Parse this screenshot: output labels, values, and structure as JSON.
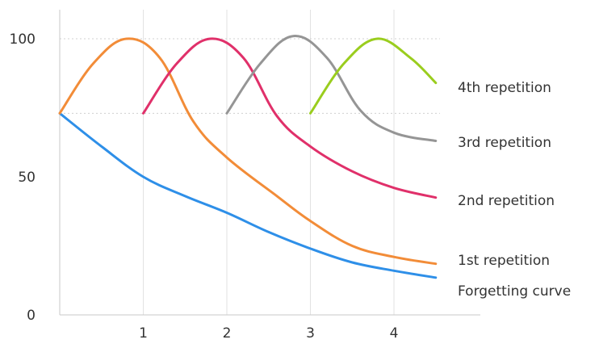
{
  "chart_data": {
    "type": "line",
    "title": "",
    "xlabel": "",
    "ylabel": "",
    "xlim": [
      0,
      4.5
    ],
    "ylim": [
      0,
      100
    ],
    "x_ticks": [
      "1",
      "2",
      "3",
      "4"
    ],
    "y_ticks": [
      "0",
      "50",
      "100"
    ],
    "grid": {
      "vertical": true,
      "horizontal": "dashed"
    },
    "legend": "labels at right end of each line",
    "series": [
      {
        "name": "Forgetting curve",
        "color": "#2E8FE8",
        "points": [
          [
            0,
            73
          ],
          [
            0.5,
            61
          ],
          [
            1,
            50
          ],
          [
            1.5,
            43
          ],
          [
            2,
            37
          ],
          [
            2.5,
            30
          ],
          [
            3,
            24
          ],
          [
            3.5,
            19
          ],
          [
            4,
            16
          ],
          [
            4.5,
            13.5
          ]
        ]
      },
      {
        "name": "1st repetition",
        "color": "#F28C38",
        "points": [
          [
            0,
            73
          ],
          [
            0.4,
            91
          ],
          [
            0.8,
            100
          ],
          [
            1.2,
            93
          ],
          [
            1.6,
            70
          ],
          [
            2,
            57
          ],
          [
            2.6,
            43
          ],
          [
            3,
            34
          ],
          [
            3.5,
            25
          ],
          [
            4,
            21
          ],
          [
            4.5,
            18.5
          ]
        ]
      },
      {
        "name": "2nd repetition",
        "color": "#E0306A",
        "points": [
          [
            1,
            73
          ],
          [
            1.4,
            91
          ],
          [
            1.8,
            100
          ],
          [
            2.2,
            93
          ],
          [
            2.6,
            72
          ],
          [
            3,
            61
          ],
          [
            3.5,
            52
          ],
          [
            4,
            46
          ],
          [
            4.5,
            42.5
          ]
        ]
      },
      {
        "name": "3rd repetition",
        "color": "#959595",
        "points": [
          [
            2,
            73
          ],
          [
            2.4,
            91
          ],
          [
            2.8,
            101
          ],
          [
            3.2,
            93
          ],
          [
            3.6,
            74
          ],
          [
            4,
            66
          ],
          [
            4.5,
            63
          ]
        ]
      },
      {
        "name": "4th repetition",
        "color": "#9ACD1E",
        "points": [
          [
            3,
            73
          ],
          [
            3.4,
            91
          ],
          [
            3.8,
            100
          ],
          [
            4.2,
            93
          ],
          [
            4.5,
            84
          ]
        ]
      }
    ]
  }
}
